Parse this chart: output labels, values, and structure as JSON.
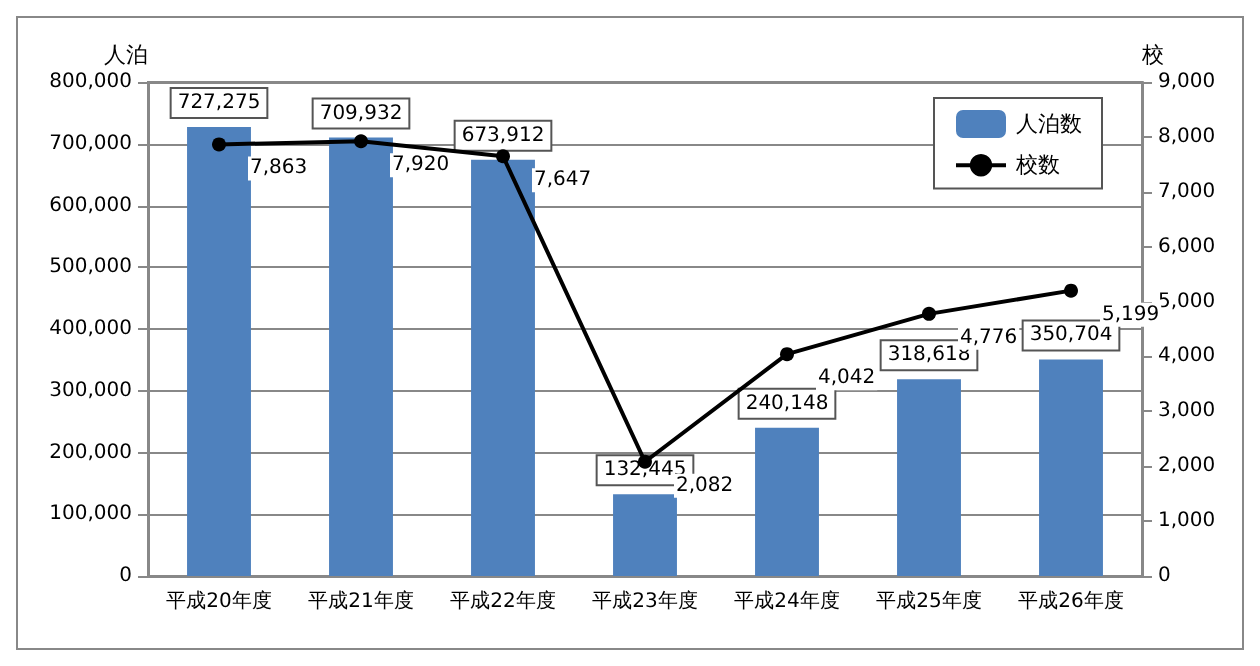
{
  "chart_data": {
    "type": "bar",
    "categories": [
      "平成20年度",
      "平成21年度",
      "平成22年度",
      "平成23年度",
      "平成24年度",
      "平成25年度",
      "平成26年度"
    ],
    "ylabel": "人泊",
    "y2label": "校",
    "series": [
      {
        "name": "人泊数",
        "color": "#4f81bd",
        "values": [
          727275,
          709932,
          673912,
          132445,
          240148,
          318618,
          350704
        ],
        "value_labels": [
          "727,275",
          "709,932",
          "673,912",
          "132,445",
          "240,148",
          "318,618",
          "350,704"
        ]
      },
      {
        "name": "校数",
        "type": "line",
        "axis": "y2",
        "color": "#000000",
        "values": [
          7863,
          7920,
          7647,
          2082,
          4042,
          4776,
          5199
        ],
        "value_labels": [
          "7,863",
          "7,920",
          "7,647",
          "2,082",
          "4,042",
          "4,776",
          "5,199"
        ]
      }
    ],
    "ylim": [
      0,
      800000
    ],
    "yticks": [
      0,
      {
        "value": 100000,
        "label": "100,000"
      },
      {
        "value": 200000,
        "label": "200,000"
      },
      {
        "value": 300000,
        "label": "300,000"
      },
      {
        "value": 400000,
        "label": "400,000"
      },
      {
        "value": 500000,
        "label": "500,000"
      },
      {
        "value": 600000,
        "label": "600,000"
      },
      {
        "value": 700000,
        "label": "700,000"
      },
      {
        "value": 800000,
        "label": "800,000"
      }
    ],
    "y2lim": [
      0,
      9000
    ],
    "y2ticks": [
      0,
      {
        "value": 1000,
        "label": "1,000"
      },
      {
        "value": 2000,
        "label": "2,000"
      },
      {
        "value": 3000,
        "label": "3,000"
      },
      {
        "value": 4000,
        "label": "4,000"
      },
      {
        "value": 5000,
        "label": "5,000"
      },
      {
        "value": 6000,
        "label": "6,000"
      },
      {
        "value": 7000,
        "label": "7,000"
      },
      {
        "value": 8000,
        "label": "8,000"
      },
      {
        "value": 9000,
        "label": "9,000"
      }
    ],
    "grid": "y",
    "legend": "top right",
    "marker": "circle",
    "line_style": "solid"
  }
}
